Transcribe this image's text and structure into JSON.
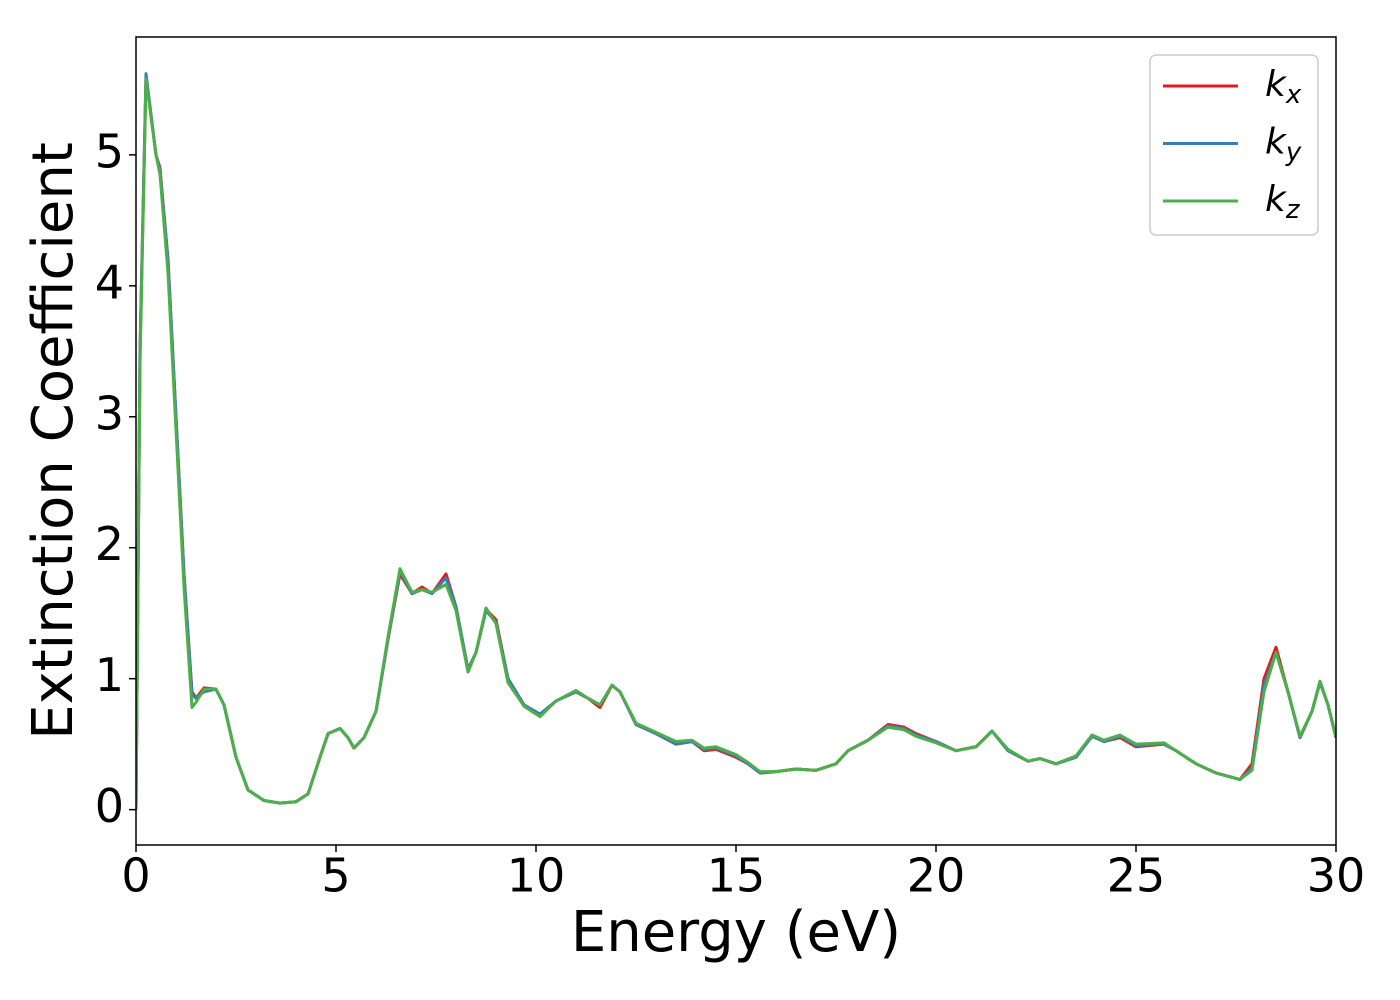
{
  "chart_data": {
    "type": "line",
    "xlabel": "Energy (eV)",
    "ylabel": "Extinction Coefficient",
    "x": [
      0,
      0.1,
      0.25,
      0.5,
      0.6,
      0.8,
      1.0,
      1.2,
      1.4,
      1.5,
      1.7,
      2.0,
      2.2,
      2.5,
      2.8,
      3.2,
      3.6,
      4.0,
      4.3,
      4.6,
      4.8,
      5.1,
      5.3,
      5.45,
      5.7,
      6.0,
      6.3,
      6.6,
      6.9,
      7.15,
      7.4,
      7.75,
      8.0,
      8.3,
      8.5,
      8.75,
      9.0,
      9.3,
      9.7,
      10.1,
      10.5,
      11.0,
      11.3,
      11.6,
      11.9,
      12.1,
      12.5,
      13.0,
      13.5,
      13.9,
      14.2,
      14.5,
      15.0,
      15.3,
      15.6,
      16.0,
      16.5,
      17.0,
      17.5,
      17.8,
      18.3,
      18.8,
      19.2,
      19.5,
      20.0,
      20.5,
      21.0,
      21.4,
      21.8,
      22.3,
      22.6,
      23.0,
      23.5,
      23.9,
      24.2,
      24.6,
      25.0,
      25.7,
      26.0,
      26.5,
      27.0,
      27.6,
      27.9,
      28.2,
      28.5,
      28.8,
      29.1,
      29.4,
      29.6,
      29.8,
      30.0
    ],
    "series": [
      {
        "name": "kx",
        "color": "#e41a1c",
        "values": [
          0.0,
          3.5,
          5.6,
          5.0,
          4.9,
          4.2,
          3.0,
          1.8,
          0.9,
          0.85,
          0.93,
          0.92,
          0.8,
          0.4,
          0.15,
          0.07,
          0.05,
          0.06,
          0.12,
          0.4,
          0.58,
          0.62,
          0.55,
          0.47,
          0.55,
          0.75,
          1.3,
          1.8,
          1.65,
          1.7,
          1.65,
          1.8,
          1.55,
          1.07,
          1.2,
          1.53,
          1.45,
          1.0,
          0.8,
          0.72,
          0.83,
          0.9,
          0.85,
          0.78,
          0.95,
          0.9,
          0.65,
          0.58,
          0.5,
          0.52,
          0.45,
          0.46,
          0.4,
          0.35,
          0.28,
          0.29,
          0.31,
          0.3,
          0.35,
          0.45,
          0.53,
          0.65,
          0.63,
          0.58,
          0.52,
          0.45,
          0.48,
          0.6,
          0.45,
          0.37,
          0.39,
          0.35,
          0.4,
          0.56,
          0.52,
          0.55,
          0.48,
          0.5,
          0.45,
          0.35,
          0.28,
          0.23,
          0.35,
          1.0,
          1.24,
          0.9,
          0.55,
          0.75,
          0.98,
          0.8,
          0.55
        ]
      },
      {
        "name": "ky",
        "color": "#377eb8",
        "values": [
          0.0,
          3.5,
          5.62,
          5.0,
          4.88,
          4.2,
          3.0,
          1.8,
          0.88,
          0.85,
          0.9,
          0.92,
          0.8,
          0.4,
          0.15,
          0.07,
          0.05,
          0.06,
          0.12,
          0.4,
          0.58,
          0.62,
          0.55,
          0.47,
          0.55,
          0.75,
          1.3,
          1.82,
          1.65,
          1.68,
          1.65,
          1.77,
          1.55,
          1.07,
          1.2,
          1.52,
          1.43,
          1.0,
          0.8,
          0.73,
          0.83,
          0.9,
          0.85,
          0.8,
          0.95,
          0.9,
          0.65,
          0.58,
          0.5,
          0.52,
          0.46,
          0.47,
          0.41,
          0.35,
          0.28,
          0.29,
          0.31,
          0.3,
          0.35,
          0.45,
          0.53,
          0.64,
          0.62,
          0.57,
          0.52,
          0.45,
          0.48,
          0.6,
          0.45,
          0.37,
          0.39,
          0.35,
          0.4,
          0.56,
          0.52,
          0.56,
          0.49,
          0.5,
          0.45,
          0.35,
          0.28,
          0.23,
          0.32,
          0.95,
          1.2,
          0.9,
          0.55,
          0.75,
          0.97,
          0.8,
          0.55
        ]
      },
      {
        "name": "kz",
        "color": "#4daf4a",
        "values": [
          0.0,
          3.4,
          5.58,
          5.0,
          4.85,
          4.1,
          2.9,
          1.7,
          0.78,
          0.82,
          0.92,
          0.92,
          0.8,
          0.4,
          0.15,
          0.07,
          0.05,
          0.06,
          0.12,
          0.4,
          0.58,
          0.62,
          0.55,
          0.47,
          0.55,
          0.75,
          1.32,
          1.84,
          1.66,
          1.68,
          1.66,
          1.72,
          1.52,
          1.05,
          1.2,
          1.54,
          1.42,
          0.97,
          0.79,
          0.71,
          0.83,
          0.91,
          0.85,
          0.8,
          0.95,
          0.9,
          0.66,
          0.59,
          0.52,
          0.53,
          0.47,
          0.48,
          0.42,
          0.36,
          0.29,
          0.29,
          0.31,
          0.3,
          0.35,
          0.45,
          0.53,
          0.63,
          0.61,
          0.56,
          0.51,
          0.45,
          0.48,
          0.6,
          0.46,
          0.37,
          0.39,
          0.35,
          0.41,
          0.57,
          0.53,
          0.57,
          0.5,
          0.51,
          0.45,
          0.35,
          0.28,
          0.23,
          0.3,
          0.9,
          1.2,
          0.9,
          0.56,
          0.75,
          0.98,
          0.8,
          0.56
        ]
      }
    ],
    "xlim": [
      0,
      30
    ],
    "xticks": [
      0,
      5,
      10,
      15,
      20,
      25,
      30
    ],
    "ylim": [
      -0.27,
      5.9
    ],
    "yticks": [
      0,
      1,
      2,
      3,
      4,
      5
    ],
    "legend": "upper right"
  }
}
